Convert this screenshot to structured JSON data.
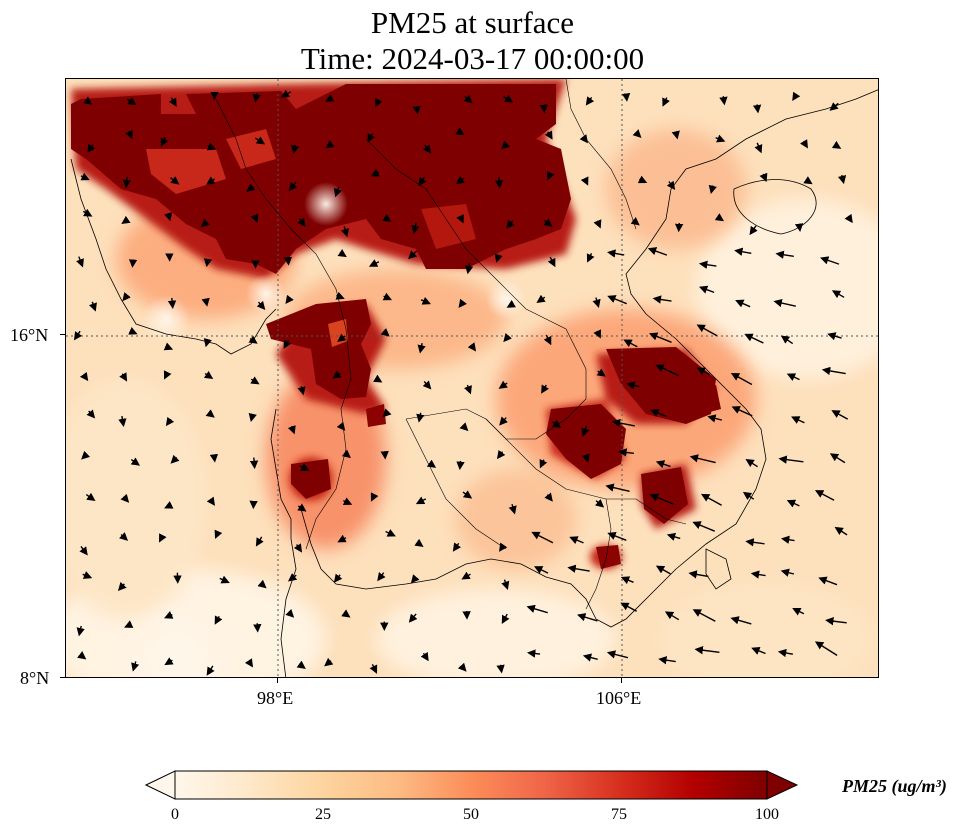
{
  "title": "PM25 at surface",
  "subtitle": "Time: 2024-03-17 00:00:00",
  "map": {
    "lon_range": [
      93,
      112
    ],
    "lat_range": [
      8,
      22
    ],
    "projection": "PlateCarree",
    "gridlines": "dotted",
    "lat_ticks": [
      {
        "value": 16,
        "label": "16°N"
      },
      {
        "value": 8,
        "label": "8°N"
      }
    ],
    "lon_ticks": [
      {
        "value": 98,
        "label": "98°E"
      },
      {
        "value": 106,
        "label": "106°E"
      }
    ],
    "field": "PM25",
    "overlay": "surface wind vectors",
    "high_concentration_regions": [
      "northern Myanmar / Laos / northern Vietnam / southern China",
      "central Myanmar (Bago)",
      "southern Myanmar (Tanintharyi)",
      "southern Laos / Cambodia / central Vietnam",
      "southern Cambodia"
    ]
  },
  "colorbar": {
    "label": "PM25 (ug/m³)",
    "cmap": "OrRd",
    "ticks": [
      "0",
      "25",
      "50",
      "75",
      "100"
    ],
    "min": 0,
    "max": 100,
    "extend": "both",
    "stops": [
      "#fff7ec",
      "#fee8c8",
      "#fdd49e",
      "#fdbb84",
      "#fc8d59",
      "#ef6548",
      "#d7301f",
      "#b30000",
      "#7f0000"
    ]
  }
}
